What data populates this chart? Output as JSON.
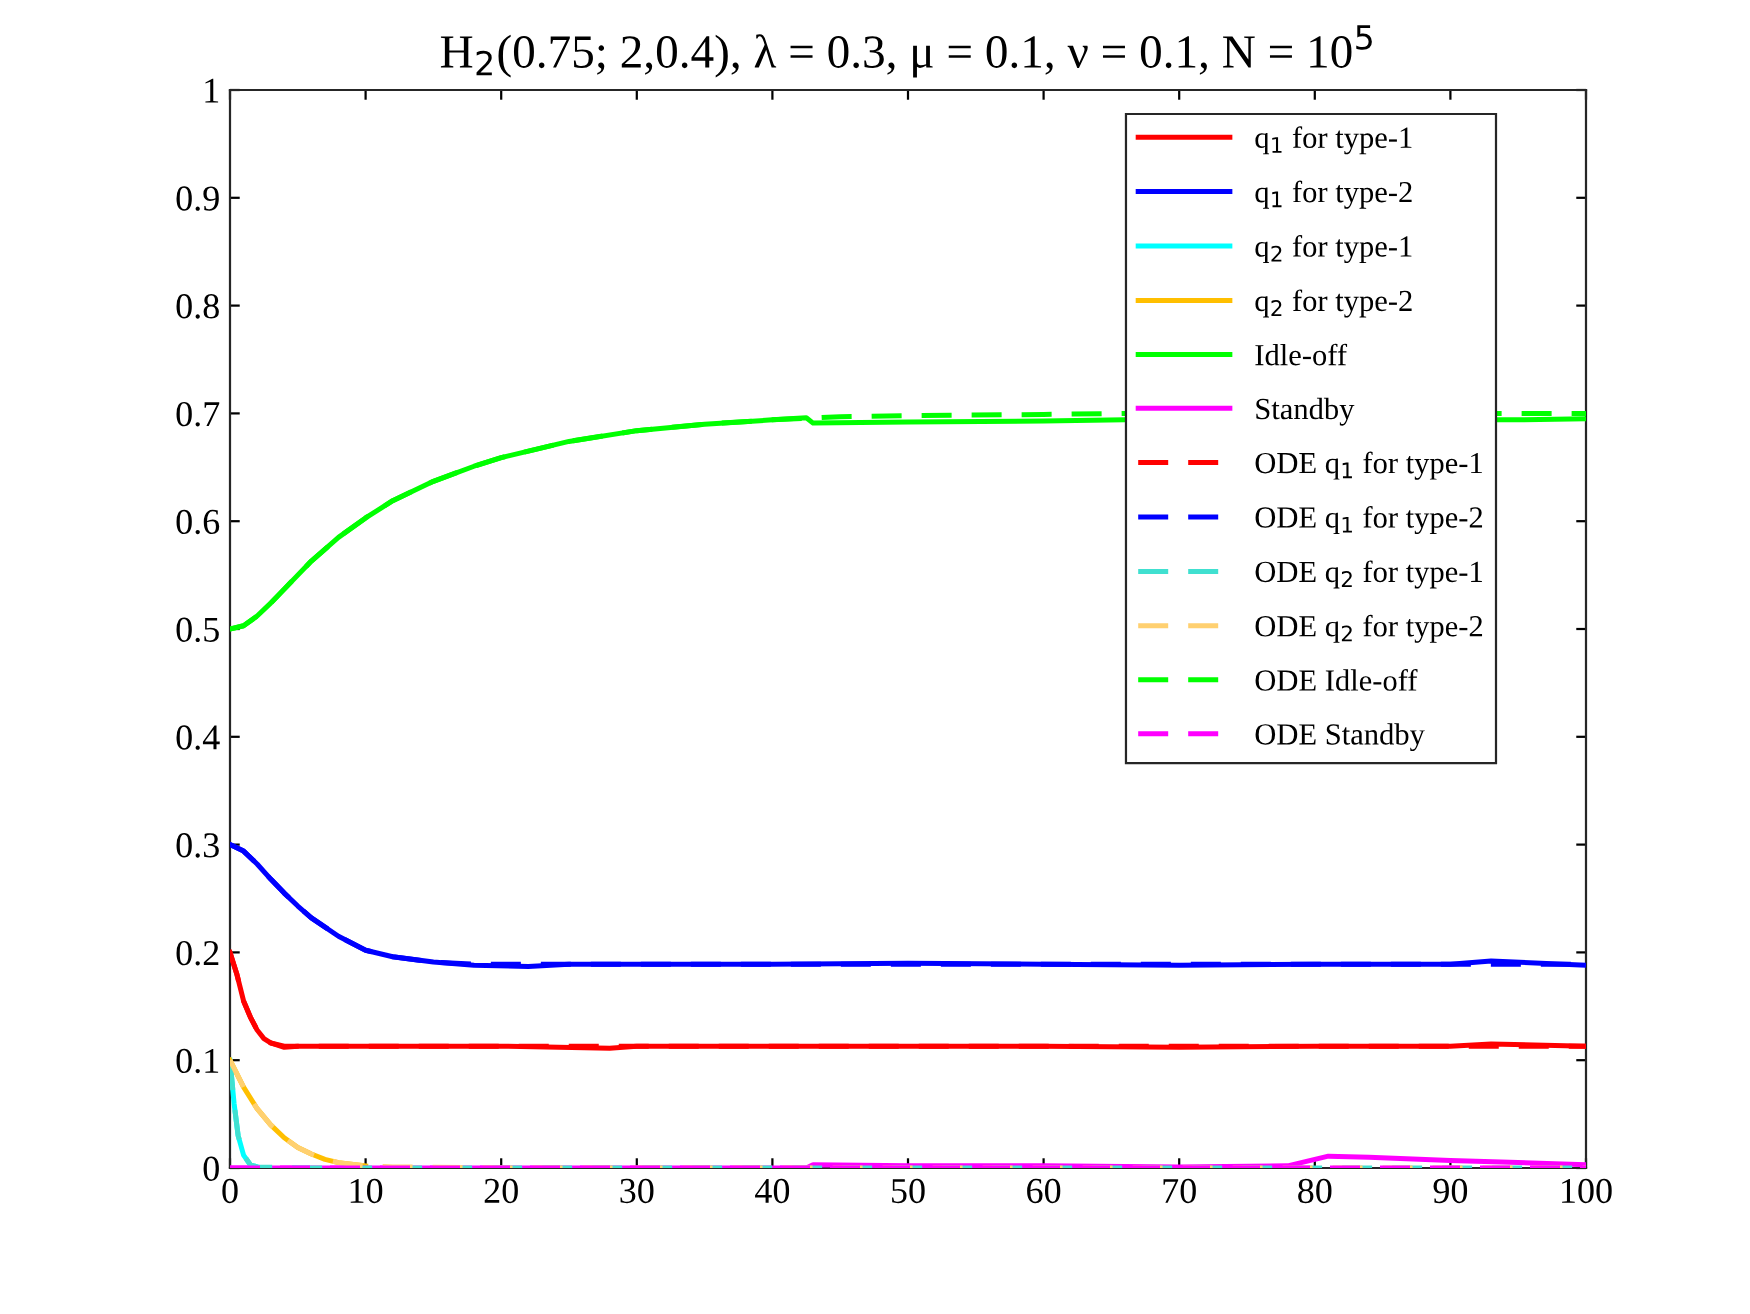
{
  "chart_data": {
    "type": "line",
    "title": "H$_{2}$(0.75; 2,0.4), λ = 0.3, μ = 0.1, ν = 0.1, N = 10$^{5}$",
    "xlim": [
      0,
      100
    ],
    "ylim": [
      0,
      1
    ],
    "xticks": [
      0,
      10,
      20,
      30,
      40,
      50,
      60,
      70,
      80,
      90,
      100
    ],
    "yticks": [
      0,
      0.1,
      0.2,
      0.3,
      0.4,
      0.5,
      0.6,
      0.7,
      0.8,
      0.9,
      1
    ],
    "grid": false,
    "legend": "top right",
    "series": [
      {
        "name": "q$_{1}$ for type-1",
        "color": "#ff0000",
        "line_style": "solid",
        "x": [
          0,
          0.5,
          1,
          1.5,
          2,
          2.5,
          3,
          4,
          5,
          10,
          20,
          28,
          30,
          40,
          50,
          60,
          70,
          80,
          90,
          93,
          100
        ],
        "values": [
          0.2,
          0.18,
          0.155,
          0.14,
          0.128,
          0.12,
          0.116,
          0.112,
          0.113,
          0.113,
          0.113,
          0.111,
          0.113,
          0.113,
          0.113,
          0.113,
          0.112,
          0.113,
          0.113,
          0.115,
          0.113
        ]
      },
      {
        "name": "q$_{1}$ for type-2",
        "color": "#0000ff",
        "line_style": "solid",
        "x": [
          0,
          1,
          2,
          3,
          4,
          5,
          6,
          8,
          10,
          12,
          15,
          18,
          22,
          25,
          30,
          40,
          50,
          60,
          70,
          80,
          90,
          93,
          100
        ],
        "values": [
          0.3,
          0.294,
          0.282,
          0.268,
          0.255,
          0.243,
          0.232,
          0.215,
          0.202,
          0.196,
          0.191,
          0.188,
          0.187,
          0.189,
          0.189,
          0.189,
          0.19,
          0.189,
          0.188,
          0.189,
          0.189,
          0.192,
          0.188
        ]
      },
      {
        "name": "q$_{2}$ for type-1",
        "color": "#00ffff",
        "line_style": "solid",
        "x": [
          0,
          0.3,
          0.6,
          1,
          1.5,
          2
        ],
        "values": [
          0.1,
          0.06,
          0.03,
          0.012,
          0.003,
          0.001
        ]
      },
      {
        "name": "q$_{2}$ for type-2",
        "color": "#ffbf00",
        "line_style": "solid",
        "x": [
          0,
          1,
          2,
          3,
          4,
          5,
          6,
          7,
          8,
          10
        ],
        "values": [
          0.1,
          0.075,
          0.055,
          0.04,
          0.028,
          0.019,
          0.013,
          0.008,
          0.005,
          0.002
        ]
      },
      {
        "name": "Idle-off",
        "color": "#00ff00",
        "line_style": "solid",
        "x": [
          0,
          1,
          2,
          3,
          4,
          6,
          8,
          10,
          12,
          15,
          18,
          20,
          25,
          30,
          35,
          40,
          42.5,
          43,
          50,
          60,
          66,
          95,
          100
        ],
        "values": [
          0.5,
          0.503,
          0.512,
          0.524,
          0.537,
          0.563,
          0.585,
          0.603,
          0.619,
          0.637,
          0.651,
          0.659,
          0.674,
          0.684,
          0.69,
          0.694,
          0.696,
          0.691,
          0.692,
          0.693,
          0.694,
          0.694,
          0.695
        ]
      },
      {
        "name": "Standby",
        "color": "#ff00ff",
        "line_style": "solid",
        "x": [
          0,
          10,
          20,
          30,
          42.5,
          43,
          50,
          60,
          70,
          78,
          80,
          81,
          84,
          90,
          95,
          100
        ],
        "values": [
          0,
          0,
          0,
          0,
          0,
          0.003,
          0.002,
          0.002,
          0.001,
          0.002,
          0.008,
          0.011,
          0.01,
          0.007,
          0.005,
          0.003
        ]
      },
      {
        "name": "ODE q$_{1}$ for type-1",
        "color": "#ff0000",
        "line_style": "dashed",
        "x": [
          0,
          0.5,
          1,
          1.5,
          2,
          2.5,
          3,
          4,
          5,
          10,
          100
        ],
        "values": [
          0.2,
          0.18,
          0.155,
          0.14,
          0.128,
          0.12,
          0.116,
          0.113,
          0.113,
          0.113,
          0.113
        ]
      },
      {
        "name": "ODE q$_{1}$ for type-2",
        "color": "#0000ff",
        "line_style": "dashed",
        "x": [
          0,
          1,
          2,
          3,
          4,
          5,
          6,
          8,
          10,
          12,
          15,
          18,
          25,
          100
        ],
        "values": [
          0.3,
          0.294,
          0.282,
          0.268,
          0.255,
          0.243,
          0.232,
          0.215,
          0.202,
          0.196,
          0.191,
          0.189,
          0.189,
          0.189
        ]
      },
      {
        "name": "ODE q$_{2}$ for type-1",
        "color": "#40e0d0",
        "line_style": "dashed",
        "x": [
          0,
          0.3,
          0.6,
          1,
          1.5,
          2,
          5,
          100
        ],
        "values": [
          0.1,
          0.06,
          0.03,
          0.012,
          0.003,
          0.001,
          0,
          0
        ]
      },
      {
        "name": "ODE q$_{2}$ for type-2",
        "color": "#ffd070",
        "line_style": "dashed",
        "x": [
          0,
          1,
          2,
          3,
          4,
          5,
          6,
          7,
          8,
          10,
          12,
          20,
          100
        ],
        "values": [
          0.1,
          0.075,
          0.055,
          0.04,
          0.028,
          0.019,
          0.013,
          0.008,
          0.005,
          0.002,
          0.001,
          0,
          0
        ]
      },
      {
        "name": "ODE Idle-off",
        "color": "#00ff00",
        "line_style": "dashed",
        "x": [
          0,
          1,
          2,
          3,
          4,
          6,
          8,
          10,
          12,
          15,
          18,
          20,
          25,
          30,
          35,
          40,
          45,
          50,
          60,
          66,
          95,
          100
        ],
        "values": [
          0.5,
          0.503,
          0.512,
          0.524,
          0.537,
          0.563,
          0.585,
          0.603,
          0.619,
          0.637,
          0.651,
          0.659,
          0.674,
          0.684,
          0.69,
          0.694,
          0.697,
          0.698,
          0.699,
          0.7,
          0.7,
          0.7
        ]
      },
      {
        "name": "ODE Standby",
        "color": "#ff00ff",
        "line_style": "dashed",
        "x": [
          0,
          100
        ],
        "values": [
          0,
          0
        ]
      }
    ]
  }
}
